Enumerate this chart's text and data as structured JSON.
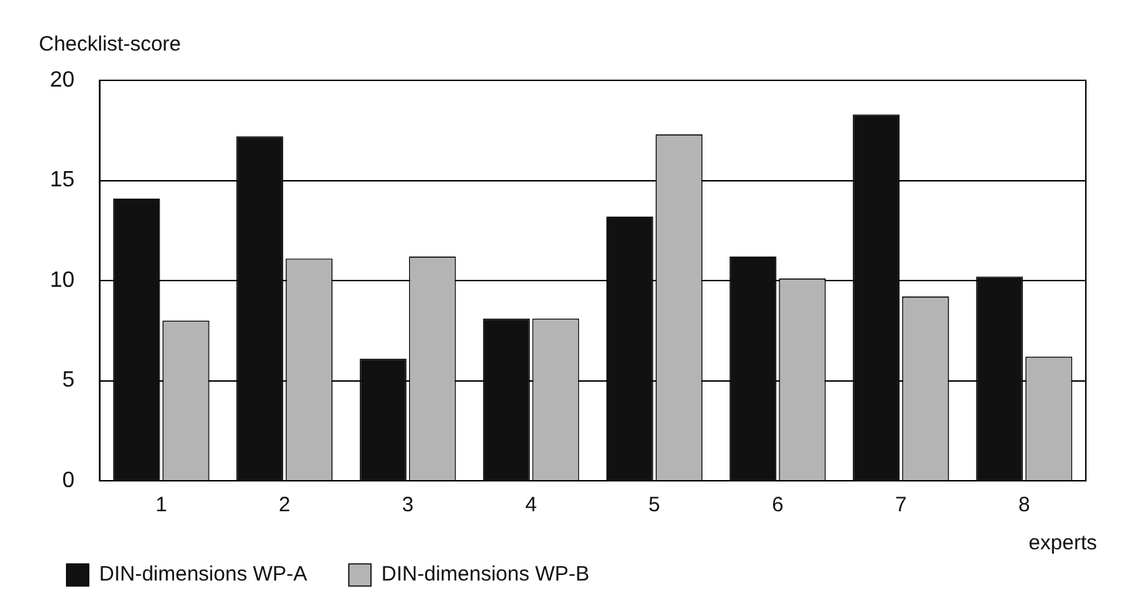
{
  "chart_data": {
    "type": "bar",
    "xlabel": "experts",
    "ylabel": "Checklist-score",
    "categories": [
      "1",
      "2",
      "3",
      "4",
      "5",
      "6",
      "7",
      "8"
    ],
    "series": [
      {
        "name": "DIN-dimensions WP-A",
        "color": "#111111",
        "values": [
          14.1,
          17.2,
          6.1,
          8.1,
          13.2,
          11.2,
          18.3,
          10.2
        ]
      },
      {
        "name": "DIN-dimensions WP-B",
        "color": "#b4b4b4",
        "values": [
          8.0,
          11.1,
          11.2,
          8.1,
          17.3,
          10.1,
          9.2,
          6.2
        ]
      }
    ],
    "ylim": [
      0,
      20
    ],
    "yticks": [
      0,
      5,
      10,
      15,
      20
    ],
    "grid": "y",
    "legend": "bottom left"
  }
}
